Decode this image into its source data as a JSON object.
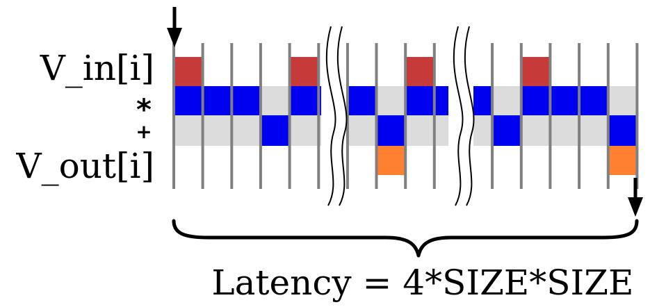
{
  "labels": {
    "v_in": "V_in[i]",
    "multiply": "*",
    "add": "+",
    "v_out": "V_out[i]"
  },
  "latency_caption": "Latency = 4*SIZE*SIZE",
  "colors": {
    "v_in": "#c73a3a",
    "v_out": "#ff8030",
    "op": "#0000f0",
    "band": "#dcdcdc",
    "tick": "#808080",
    "ink": "#000000"
  },
  "timeline": {
    "cycles": 16,
    "v_in_cycles": [
      0,
      4,
      8,
      12
    ],
    "multiply_cycles": [
      0,
      1,
      2,
      4,
      5,
      6,
      8,
      9,
      10,
      12,
      13,
      14
    ],
    "add_cycles": [
      3,
      7,
      11,
      15
    ],
    "v_out_cycles": [
      7,
      15
    ],
    "break_after_cycles": [
      5,
      9
    ]
  }
}
